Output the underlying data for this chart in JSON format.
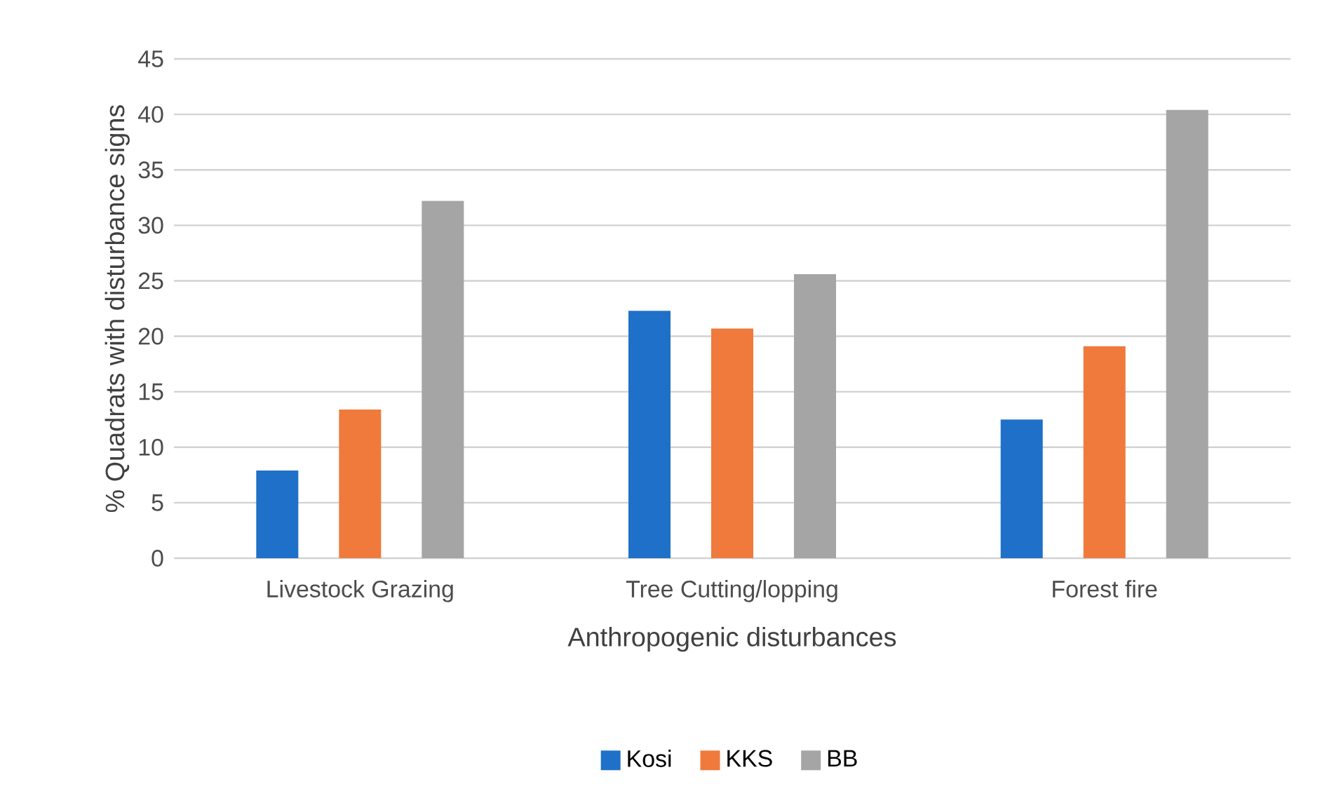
{
  "chart_data": {
    "type": "bar",
    "xlabel": "Anthropogenic disturbances",
    "ylabel": "% Quadrats with disturbance signs",
    "categories": [
      "Livestock Grazing",
      "Tree Cutting/lopping",
      "Forest fire"
    ],
    "series": [
      {
        "name": "Kosi",
        "color": "#1f70c8",
        "values": [
          7.9,
          22.3,
          12.5
        ]
      },
      {
        "name": "KKS",
        "color": "#ef7a3c",
        "values": [
          13.4,
          20.7,
          19.1
        ]
      },
      {
        "name": "BB",
        "color": "#a5a5a5",
        "values": [
          32.2,
          25.6,
          40.4
        ]
      }
    ],
    "ylim": [
      0,
      45
    ],
    "yticks": [
      0,
      5,
      10,
      15,
      20,
      25,
      30,
      35,
      40,
      45
    ],
    "grid": "y",
    "legend": "bottom"
  }
}
